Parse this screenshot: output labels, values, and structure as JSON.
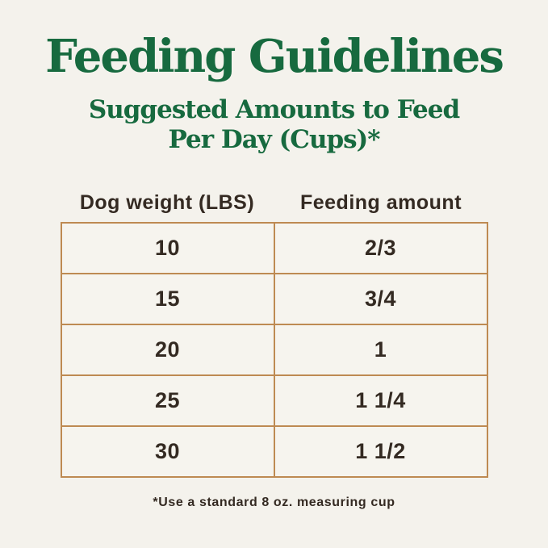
{
  "header": {
    "title": "Feeding Guidelines",
    "subtitle_line1": "Suggested Amounts to Feed",
    "subtitle_line2": "Per Day (Cups)*"
  },
  "table": {
    "columns": [
      "Dog weight (LBS)",
      "Feeding amount"
    ],
    "rows": [
      {
        "weight": "10",
        "amount": "2/3"
      },
      {
        "weight": "15",
        "amount": "3/4"
      },
      {
        "weight": "20",
        "amount": "1"
      },
      {
        "weight": "25",
        "amount": "1 1/4"
      },
      {
        "weight": "30",
        "amount": "1 1/2"
      }
    ]
  },
  "footnote": "*Use a standard 8 oz. measuring cup",
  "colors": {
    "background": "#f4f2ec",
    "title_green": "#176a3f",
    "table_border": "#be8a52",
    "text_dark": "#342a22"
  },
  "chart_data": {
    "type": "table",
    "title": "Feeding Guidelines",
    "subtitle": "Suggested Amounts to Feed Per Day (Cups)*",
    "columns": [
      "Dog weight (LBS)",
      "Feeding amount"
    ],
    "rows": [
      [
        "10",
        "2/3"
      ],
      [
        "15",
        "3/4"
      ],
      [
        "20",
        "1"
      ],
      [
        "25",
        "1 1/4"
      ],
      [
        "30",
        "1 1/2"
      ]
    ],
    "dog_weights_lbs": [
      10,
      15,
      20,
      25,
      30
    ],
    "feeding_amounts_cups": [
      0.667,
      0.75,
      1,
      1.25,
      1.5
    ],
    "footnote": "*Use a standard 8 oz. measuring cup"
  }
}
